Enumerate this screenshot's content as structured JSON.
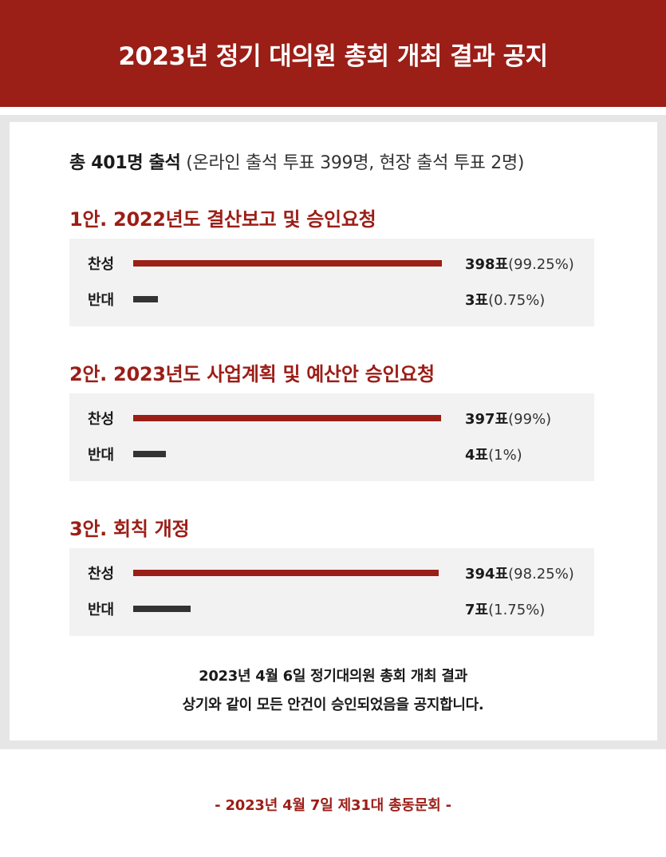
{
  "header": {
    "title": "2023년 정기 대의원 총회 개최 결과 공지"
  },
  "attendance": {
    "total": "총 401명 출석",
    "detail": "(온라인 출석 투표 399명, 현장 출석 투표 2명)"
  },
  "agendas": [
    {
      "title": "1안.  2022년도 결산보고 및 승인요청",
      "yes": {
        "label": "찬성",
        "count": "398표",
        "pct": "(99.25%)",
        "share": 0.9925
      },
      "no": {
        "label": "반대",
        "count": "3표",
        "pct": "(0.75%)",
        "share": 0.0075
      }
    },
    {
      "title": "2안. 2023년도 사업계획 및 예산안 승인요청",
      "yes": {
        "label": "찬성",
        "count": "397표",
        "pct": "(99%)",
        "share": 0.99
      },
      "no": {
        "label": "반대",
        "count": "4표",
        "pct": "(1%)",
        "share": 0.01
      }
    },
    {
      "title": "3안. 회칙 개정",
      "yes": {
        "label": "찬성",
        "count": "394표",
        "pct": "(98.25%)",
        "share": 0.9825
      },
      "no": {
        "label": "반대",
        "count": "7표",
        "pct": "(1.75%)",
        "share": 0.0175
      }
    }
  ],
  "notice": {
    "line1": "2023년 4월 6일 정기대의원 총회 개최 결과",
    "line2": "상기와 같이 모든 안건이 승인되었음을 공지합니다."
  },
  "footer": {
    "text": "-  2023년 4월 7일 제31대 총동문회  -"
  },
  "colors": {
    "accent": "#9b1e17",
    "no_bar": "#333333",
    "box_bg": "#f2f2f2"
  }
}
